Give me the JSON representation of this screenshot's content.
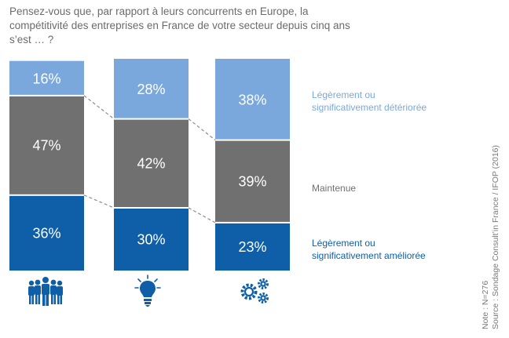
{
  "title": "Pensez-vous que, par rapport à leurs concurrents en Europe, la compétitivité des entreprises en France de votre secteur depuis cinq ans s’est … ?",
  "colors": {
    "deteriorated": "#7aa8dc",
    "maintained": "#707070",
    "improved": "#0e5fa8",
    "title_text": "#6b6b6b",
    "connector": "#8c8c8c",
    "icon": "#0e5fa8"
  },
  "chart_data": {
    "type": "bar",
    "stacked": true,
    "percent_stacked": true,
    "categories": [
      "people-group-icon",
      "lightbulb-icon",
      "gears-icon"
    ],
    "series": [
      {
        "name": "Légèrement ou significativement améliorée",
        "values": [
          36,
          30,
          23
        ]
      },
      {
        "name": "Maintenue",
        "values": [
          47,
          42,
          39
        ]
      },
      {
        "name": "Légèrement ou significativement détériorée",
        "values": [
          16,
          28,
          38
        ]
      }
    ],
    "value_suffix": "%",
    "legend_position": "right",
    "grid": false
  },
  "legend": {
    "deteriorated": [
      "Légèrement ou",
      "significativement détériorée"
    ],
    "maintained": [
      "Maintenue"
    ],
    "improved": [
      "Légèrement ou",
      "significativement améliorée"
    ]
  },
  "source": {
    "note": "Note : N=276",
    "source": "Source : Sondage Consult’in France / IFOP (2016)"
  }
}
